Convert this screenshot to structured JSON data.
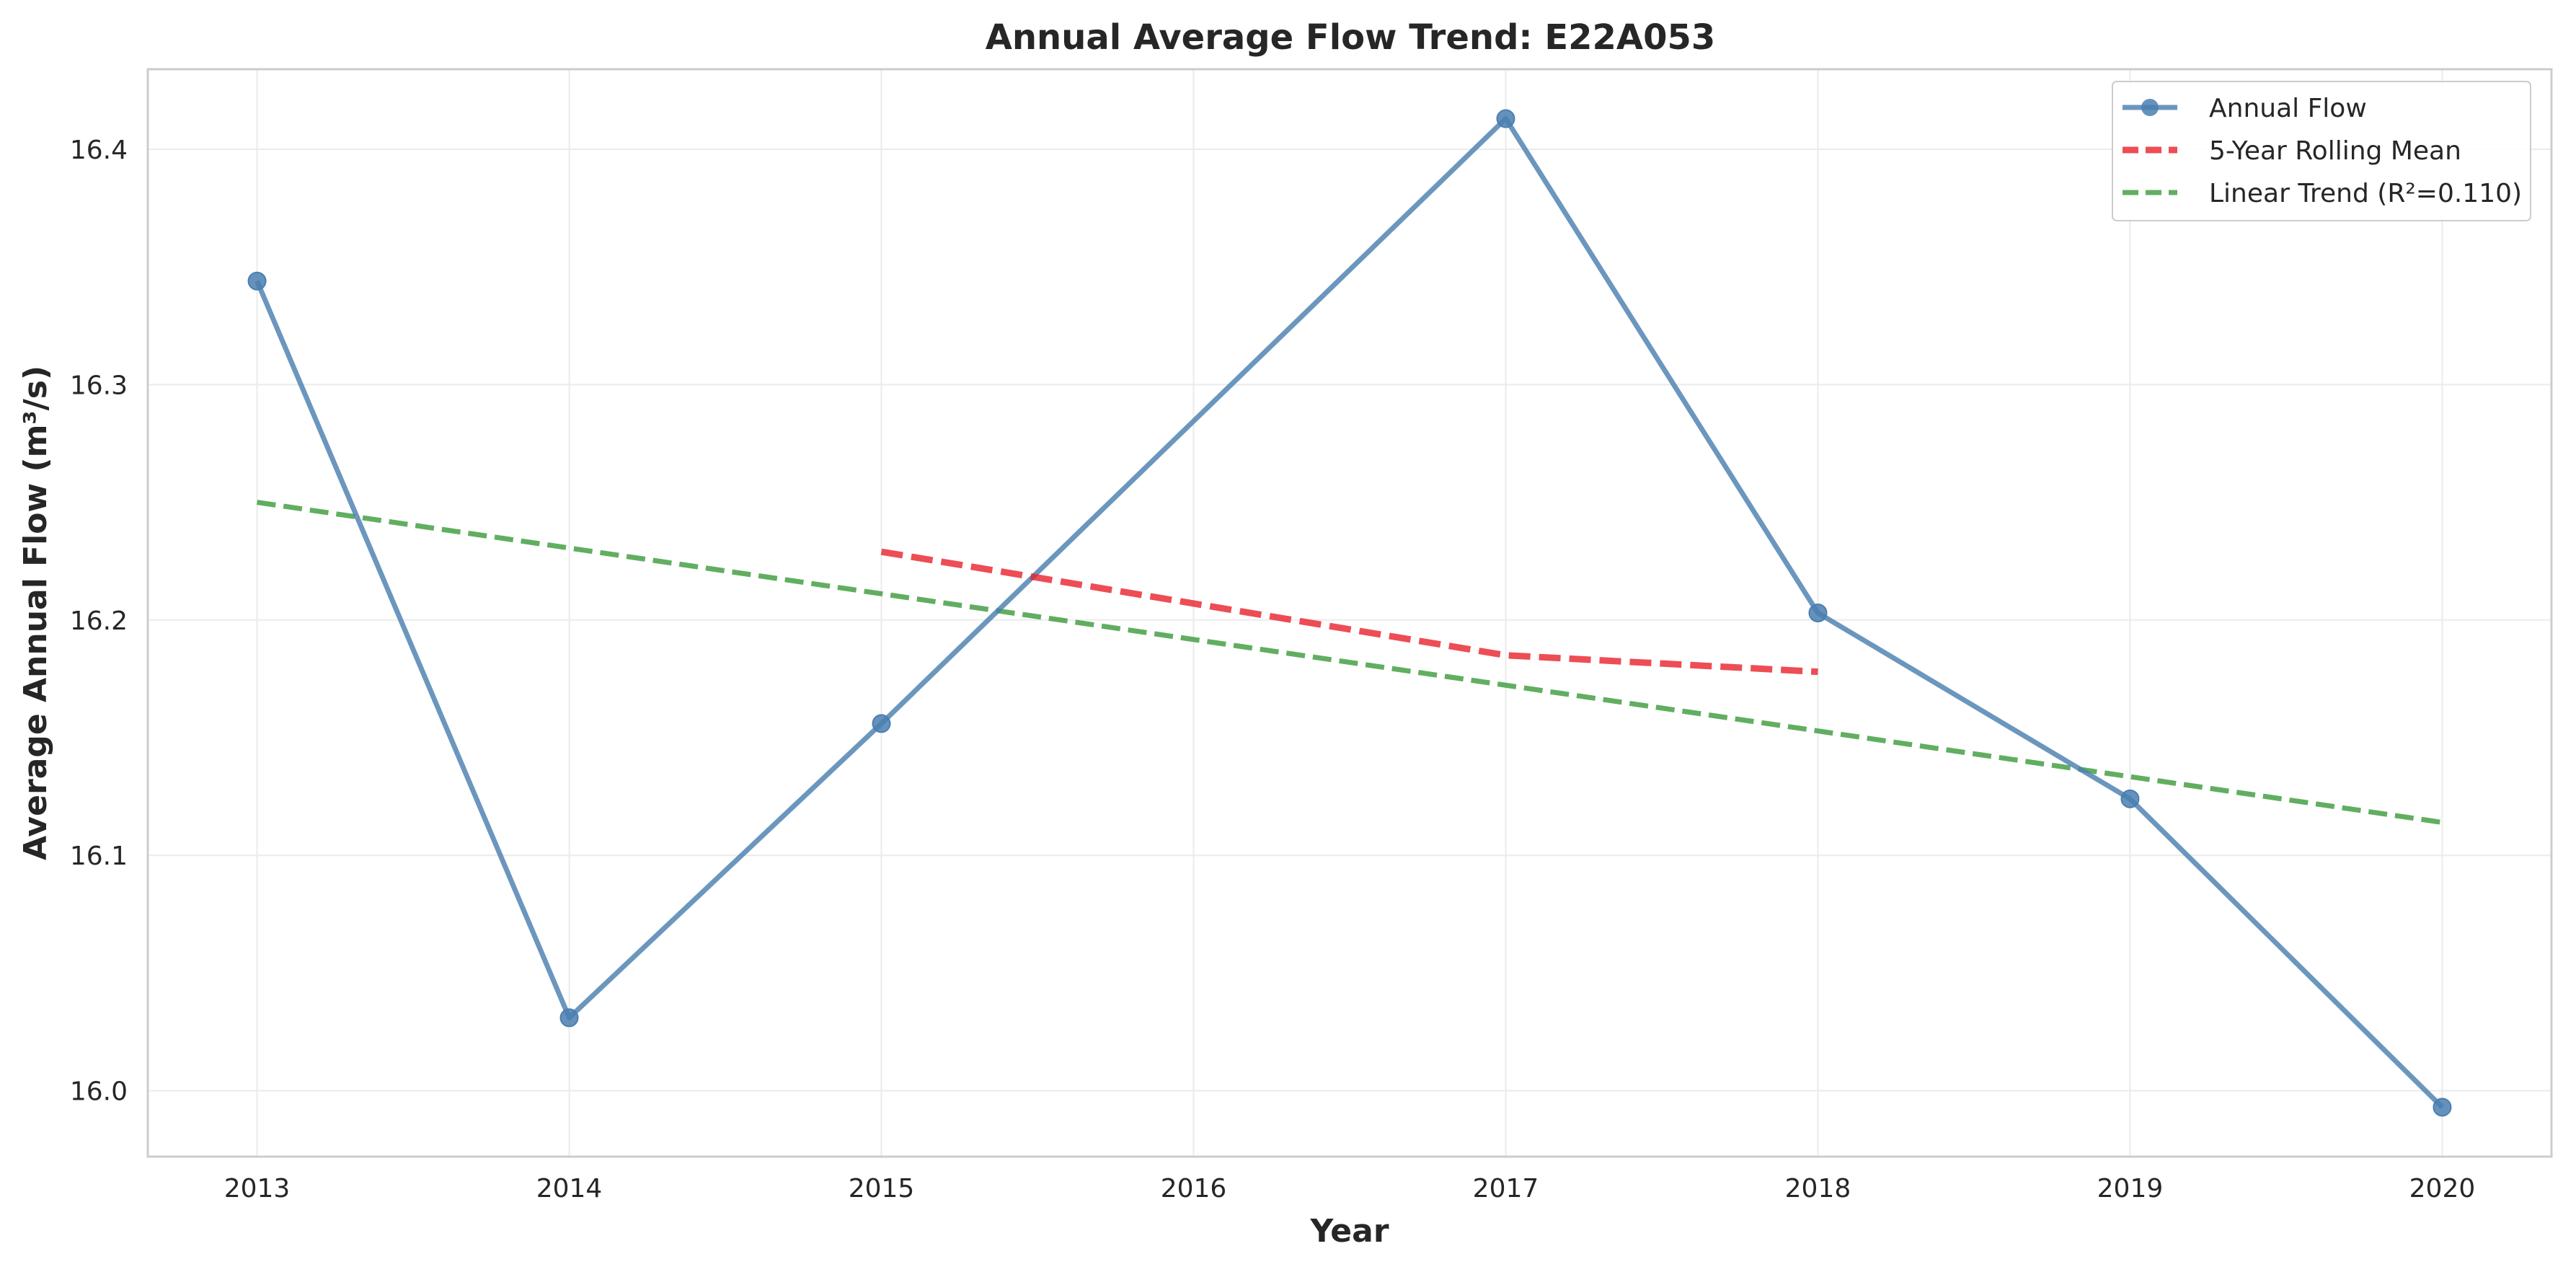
{
  "chart_data": {
    "type": "line",
    "title": "Annual Average Flow Trend: E22A053",
    "xlabel": "Year",
    "ylabel": "Average Annual Flow (m³/s)",
    "xlim": [
      2012.65,
      2020.35
    ],
    "ylim": [
      15.972,
      16.434
    ],
    "x_ticks": [
      "2013",
      "2014",
      "2015",
      "2016",
      "2017",
      "2018",
      "2019",
      "2020"
    ],
    "y_ticks": [
      "16.0",
      "16.1",
      "16.2",
      "16.3",
      "16.4"
    ],
    "grid": true,
    "legend_position": "top-right",
    "series": [
      {
        "name": "Annual Flow",
        "style": "solid-markers",
        "color": "#4a7fb0",
        "x": [
          2013,
          2014,
          2015,
          2017,
          2018,
          2019,
          2020
        ],
        "y": [
          16.344,
          16.031,
          16.156,
          16.413,
          16.203,
          16.124,
          15.993
        ]
      },
      {
        "name": "5-Year Rolling Mean",
        "style": "dashed",
        "color": "#e8202a",
        "x": [
          2015,
          2016,
          2017,
          2018
        ],
        "y": [
          16.229,
          16.207,
          16.185,
          16.178
        ]
      },
      {
        "name": "Linear Trend (R²=0.110)",
        "style": "dashed",
        "color": "#3a9a3a",
        "x": [
          2013,
          2020
        ],
        "y": [
          16.25,
          16.114
        ]
      }
    ]
  }
}
